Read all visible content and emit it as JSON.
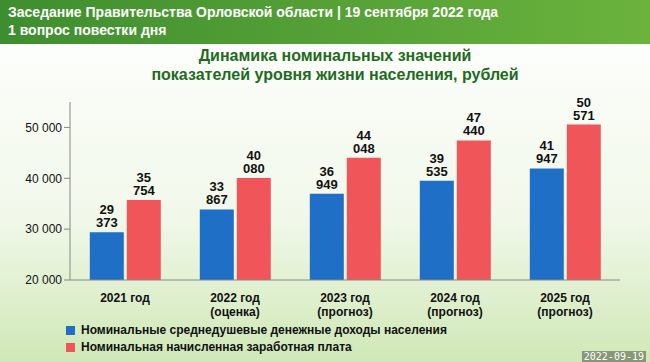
{
  "header": {
    "title": "Заседание Правительства Орловской области | 19 сентября 2022 года",
    "subtitle": "1 вопрос повестки дня"
  },
  "timestamp": "2022-09-19",
  "chart_data": {
    "type": "bar",
    "title": "Динамика номинальных значений показателей уровня жизни населения, рублей",
    "categories": [
      "2021 год",
      "2022 год (оценка)",
      "2023 год (прогноз)",
      "2024 год (прогноз)",
      "2025 год (прогноз)"
    ],
    "series": [
      {
        "name": "Номинальные среднедушевые денежные доходы населения",
        "color": "#1f6fc6",
        "values": [
          29373,
          33867,
          36949,
          39535,
          41947
        ],
        "value_labels": [
          "29 373",
          "33 867",
          "36 949",
          "39 535",
          "41 947"
        ]
      },
      {
        "name": "Номинальная начисленная заработная плата",
        "color": "#f0555a",
        "values": [
          35754,
          40080,
          44048,
          47440,
          50571
        ],
        "value_labels": [
          "35 754",
          "40 080",
          "44 048",
          "47 440",
          "50 571"
        ]
      }
    ],
    "ylim": [
      20000,
      55000
    ],
    "yticks": [
      {
        "value": 20000,
        "label": "20 000"
      },
      {
        "value": 30000,
        "label": "30 000"
      },
      {
        "value": 40000,
        "label": "40 000"
      },
      {
        "value": 50000,
        "label": "50 000"
      }
    ],
    "grid": false,
    "legend": "bottom",
    "data_labels": true
  }
}
